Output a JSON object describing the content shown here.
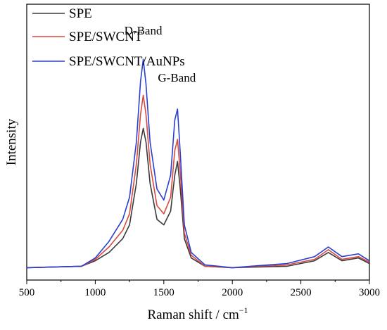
{
  "chart_data": {
    "type": "line",
    "title": "",
    "xlabel": "Raman shift / cm",
    "xlabel_sup": "−1",
    "ylabel": "Intensity",
    "xlim": [
      500,
      3000
    ],
    "ylim": [
      0,
      1
    ],
    "xticks": [
      "500",
      "1000",
      "1500",
      "2000",
      "2500",
      "3000"
    ],
    "yticks_shown": false,
    "legend_position": "top-left",
    "annotations": [
      {
        "text": "D-Band",
        "x": 1350,
        "y": 0.89
      },
      {
        "text": "G-Band",
        "x": 1595,
        "y": 0.72
      }
    ],
    "series": [
      {
        "name": "SPE",
        "color": "#3a3a3a",
        "x": [
          500,
          900,
          1000,
          1100,
          1200,
          1250,
          1300,
          1330,
          1350,
          1370,
          1400,
          1450,
          1500,
          1550,
          1580,
          1600,
          1620,
          1650,
          1700,
          1800,
          2000,
          2400,
          2600,
          2700,
          2800,
          2920,
          3000
        ],
        "y": [
          0.045,
          0.05,
          0.07,
          0.1,
          0.15,
          0.2,
          0.35,
          0.5,
          0.55,
          0.5,
          0.35,
          0.22,
          0.2,
          0.25,
          0.38,
          0.43,
          0.33,
          0.15,
          0.08,
          0.05,
          0.045,
          0.05,
          0.07,
          0.1,
          0.07,
          0.08,
          0.06
        ]
      },
      {
        "name": "SPE/SWCNT",
        "color": "#d9493e",
        "x": [
          500,
          900,
          1000,
          1100,
          1200,
          1250,
          1300,
          1330,
          1350,
          1370,
          1400,
          1450,
          1500,
          1550,
          1580,
          1600,
          1620,
          1650,
          1700,
          1800,
          2000,
          2400,
          2600,
          2700,
          2800,
          2920,
          3000
        ],
        "y": [
          0.045,
          0.05,
          0.075,
          0.12,
          0.18,
          0.24,
          0.42,
          0.6,
          0.67,
          0.6,
          0.42,
          0.27,
          0.24,
          0.3,
          0.47,
          0.51,
          0.39,
          0.17,
          0.09,
          0.05,
          0.045,
          0.055,
          0.075,
          0.11,
          0.075,
          0.085,
          0.065
        ]
      },
      {
        "name": "SPE/SWCNT/AuNPs",
        "color": "#2a3fd0",
        "x": [
          500,
          900,
          1000,
          1100,
          1200,
          1250,
          1300,
          1330,
          1350,
          1370,
          1400,
          1450,
          1500,
          1550,
          1580,
          1600,
          1620,
          1650,
          1700,
          1800,
          2000,
          2400,
          2600,
          2700,
          2800,
          2920,
          3000
        ],
        "y": [
          0.045,
          0.05,
          0.08,
          0.14,
          0.22,
          0.3,
          0.5,
          0.72,
          0.8,
          0.71,
          0.5,
          0.33,
          0.29,
          0.38,
          0.58,
          0.62,
          0.46,
          0.2,
          0.1,
          0.055,
          0.045,
          0.06,
          0.085,
          0.12,
          0.085,
          0.095,
          0.07
        ]
      }
    ]
  }
}
